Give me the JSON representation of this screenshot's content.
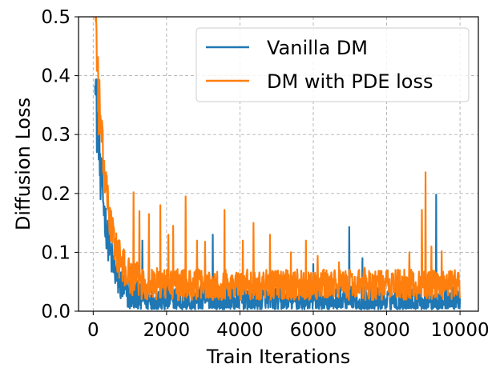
{
  "chart_data": {
    "type": "line",
    "title": "",
    "xlabel": "Train Iterations",
    "ylabel": "Diffusion Loss",
    "xlim": [
      -400,
      10500
    ],
    "ylim": [
      0.0,
      0.5
    ],
    "xticks": [
      0,
      2000,
      4000,
      6000,
      8000,
      10000
    ],
    "xtick_labels": [
      "0",
      "2000",
      "4000",
      "6000",
      "8000",
      "10000"
    ],
    "yticks": [
      0.0,
      0.1,
      0.2,
      0.3,
      0.4,
      0.5
    ],
    "ytick_labels": [
      "0.0",
      "0.1",
      "0.2",
      "0.3",
      "0.4",
      "0.5"
    ],
    "grid": true,
    "legend": {
      "placement": "top-right"
    },
    "series": [
      {
        "name": "Vanilla DM",
        "color": "#1f77b4",
        "profile": {
          "x_start": 50,
          "x_end": 10000,
          "step": 10,
          "initial": 0.42,
          "floor": 0.018,
          "decay_scale": 260,
          "noise_amplitude": 0.024
        },
        "spikes": [
          {
            "x": 100,
            "y": 0.27
          },
          {
            "x": 200,
            "y": 0.19
          },
          {
            "x": 1340,
            "y": 0.12
          },
          {
            "x": 3260,
            "y": 0.13
          },
          {
            "x": 6000,
            "y": 0.08
          },
          {
            "x": 6980,
            "y": 0.143
          },
          {
            "x": 7340,
            "y": 0.09
          },
          {
            "x": 9350,
            "y": 0.198
          }
        ]
      },
      {
        "name": "DM with PDE loss",
        "color": "#ff7f0e",
        "profile": {
          "x_start": 50,
          "x_end": 10000,
          "step": 10,
          "initial": 0.52,
          "floor": 0.045,
          "decay_scale": 280,
          "noise_amplitude": 0.026
        },
        "spikes": [
          {
            "x": 80,
            "y": 0.5
          },
          {
            "x": 150,
            "y": 0.3
          },
          {
            "x": 1100,
            "y": 0.202
          },
          {
            "x": 1260,
            "y": 0.17
          },
          {
            "x": 1520,
            "y": 0.165
          },
          {
            "x": 1830,
            "y": 0.18
          },
          {
            "x": 2050,
            "y": 0.13
          },
          {
            "x": 2180,
            "y": 0.145
          },
          {
            "x": 2520,
            "y": 0.195
          },
          {
            "x": 2830,
            "y": 0.12
          },
          {
            "x": 3050,
            "y": 0.118
          },
          {
            "x": 3580,
            "y": 0.172
          },
          {
            "x": 4080,
            "y": 0.12
          },
          {
            "x": 4370,
            "y": 0.15
          },
          {
            "x": 4820,
            "y": 0.13
          },
          {
            "x": 5390,
            "y": 0.1
          },
          {
            "x": 5800,
            "y": 0.12
          },
          {
            "x": 6120,
            "y": 0.094
          },
          {
            "x": 6700,
            "y": 0.083
          },
          {
            "x": 7400,
            "y": 0.074
          },
          {
            "x": 8620,
            "y": 0.1
          },
          {
            "x": 8960,
            "y": 0.172
          },
          {
            "x": 9060,
            "y": 0.236
          },
          {
            "x": 9220,
            "y": 0.11
          },
          {
            "x": 9500,
            "y": 0.102
          },
          {
            "x": 9750,
            "y": 0.065
          }
        ]
      }
    ]
  }
}
